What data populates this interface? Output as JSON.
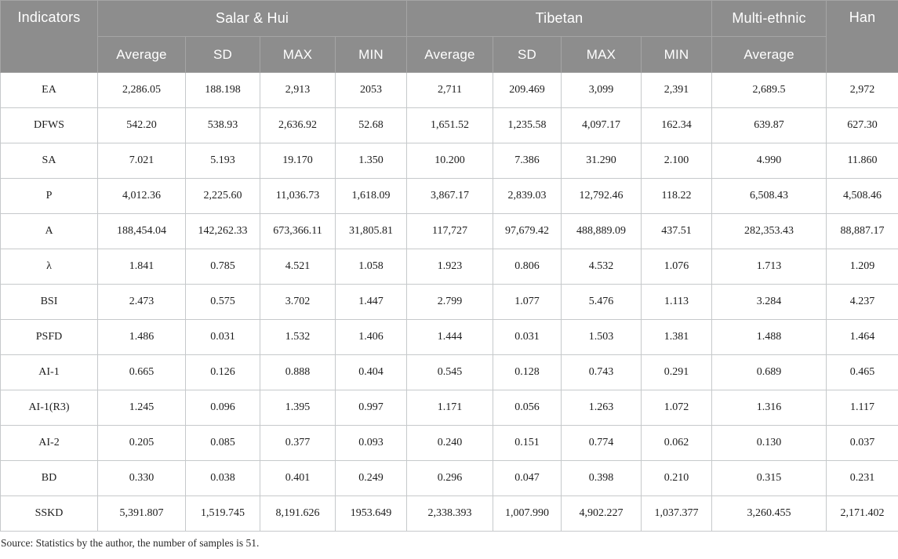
{
  "table": {
    "header": {
      "indicators_label": "Indicators",
      "groups": [
        {
          "label": "Salar & Hui",
          "cols": [
            "Average",
            "SD",
            "MAX",
            "MIN"
          ]
        },
        {
          "label": "Tibetan",
          "cols": [
            "Average",
            "SD",
            "MAX",
            "MIN"
          ]
        },
        {
          "label": "Multi-ethnic",
          "cols": [
            "Average"
          ]
        },
        {
          "label": "Han",
          "cols": []
        }
      ]
    },
    "rows": [
      {
        "indicator": "EA",
        "values": [
          "2,286.05",
          "188.198",
          "2,913",
          "2053",
          "2,711",
          "209.469",
          "3,099",
          "2,391",
          "2,689.5",
          "2,972"
        ]
      },
      {
        "indicator": "DFWS",
        "values": [
          "542.20",
          "538.93",
          "2,636.92",
          "52.68",
          "1,651.52",
          "1,235.58",
          "4,097.17",
          "162.34",
          "639.87",
          "627.30"
        ]
      },
      {
        "indicator": "SA",
        "values": [
          "7.021",
          "5.193",
          "19.170",
          "1.350",
          "10.200",
          "7.386",
          "31.290",
          "2.100",
          "4.990",
          "11.860"
        ]
      },
      {
        "indicator": "P",
        "values": [
          "4,012.36",
          "2,225.60",
          "11,036.73",
          "1,618.09",
          "3,867.17",
          "2,839.03",
          "12,792.46",
          "118.22",
          "6,508.43",
          "4,508.46"
        ]
      },
      {
        "indicator": "A",
        "values": [
          "188,454.04",
          "142,262.33",
          "673,366.11",
          "31,805.81",
          "117,727",
          "97,679.42",
          "488,889.09",
          "437.51",
          "282,353.43",
          "88,887.17"
        ]
      },
      {
        "indicator": "λ",
        "values": [
          "1.841",
          "0.785",
          "4.521",
          "1.058",
          "1.923",
          "0.806",
          "4.532",
          "1.076",
          "1.713",
          "1.209"
        ]
      },
      {
        "indicator": "BSI",
        "values": [
          "2.473",
          "0.575",
          "3.702",
          "1.447",
          "2.799",
          "1.077",
          "5.476",
          "1.113",
          "3.284",
          "4.237"
        ]
      },
      {
        "indicator": "PSFD",
        "values": [
          "1.486",
          "0.031",
          "1.532",
          "1.406",
          "1.444",
          "0.031",
          "1.503",
          "1.381",
          "1.488",
          "1.464"
        ]
      },
      {
        "indicator": "AI-1",
        "values": [
          "0.665",
          "0.126",
          "0.888",
          "0.404",
          "0.545",
          "0.128",
          "0.743",
          "0.291",
          "0.689",
          "0.465"
        ]
      },
      {
        "indicator": "AI-1(R3)",
        "values": [
          "1.245",
          "0.096",
          "1.395",
          "0.997",
          "1.171",
          "0.056",
          "1.263",
          "1.072",
          "1.316",
          "1.117"
        ]
      },
      {
        "indicator": "AI-2",
        "values": [
          "0.205",
          "0.085",
          "0.377",
          "0.093",
          "0.240",
          "0.151",
          "0.774",
          "0.062",
          "0.130",
          "0.037"
        ]
      },
      {
        "indicator": "BD",
        "values": [
          "0.330",
          "0.038",
          "0.401",
          "0.249",
          "0.296",
          "0.047",
          "0.398",
          "0.210",
          "0.315",
          "0.231"
        ]
      },
      {
        "indicator": "SSKD",
        "values": [
          "5,391.807",
          "1,519.745",
          "8,191.626",
          "1953.649",
          "2,338.393",
          "1,007.990",
          "4,902.227",
          "1,037.377",
          "3,260.455",
          "2,171.402"
        ]
      }
    ],
    "source_note": "Source: Statistics by the author, the number of samples is 51."
  },
  "colors": {
    "header_bg": "#8d8d8d",
    "header_text": "#ffffff",
    "header_divider": "#a5a5a5",
    "body_border": "#c6c9cb",
    "body_text": "#1d1d1d"
  }
}
